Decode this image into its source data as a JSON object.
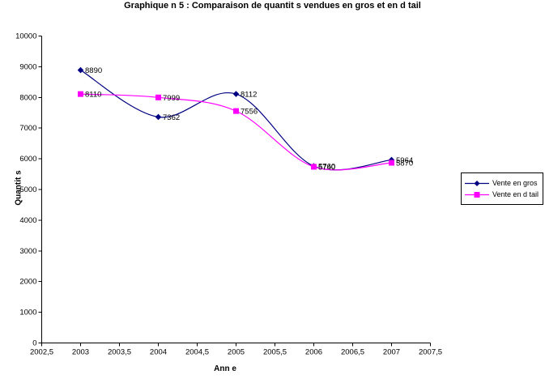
{
  "title": "Graphique n 5 : Comparaison de quantit s vendues en gros et en d tail",
  "chart_data": {
    "type": "line",
    "smoothed": true,
    "title": "Graphique n 5 : Comparaison de quantit s vendues en gros et en d tail",
    "xlabel": "Ann e",
    "ylabel": "Quantit s",
    "xlim": [
      2002.5,
      2007.5
    ],
    "ylim": [
      0,
      10000
    ],
    "grid": false,
    "legend_position": "right",
    "x": [
      2003,
      2004,
      2005,
      2006,
      2007
    ],
    "series": [
      {
        "name": "Vente en gros",
        "color": "#000080",
        "marker": "diamond",
        "values": [
          8890,
          7362,
          8112,
          5760,
          5964
        ],
        "point_labels": [
          "8890",
          "7362",
          "8112",
          "5760",
          "5964"
        ]
      },
      {
        "name": "Vente en d tail",
        "color": "#FF00FF",
        "marker": "square",
        "values": [
          8110,
          7999,
          7556,
          5740,
          5870
        ],
        "point_labels": [
          "8110",
          "7999",
          "7556",
          "5740",
          "5870"
        ]
      }
    ],
    "x_ticks": [
      {
        "v": 2002.5,
        "label": "2002,5"
      },
      {
        "v": 2003,
        "label": "2003"
      },
      {
        "v": 2003.5,
        "label": "2003,5"
      },
      {
        "v": 2004,
        "label": "2004"
      },
      {
        "v": 2004.5,
        "label": "2004,5"
      },
      {
        "v": 2005,
        "label": "2005"
      },
      {
        "v": 2005.5,
        "label": "2005,5"
      },
      {
        "v": 2006,
        "label": "2006"
      },
      {
        "v": 2006.5,
        "label": "2006,5"
      },
      {
        "v": 2007,
        "label": "2007"
      },
      {
        "v": 2007.5,
        "label": "2007,5"
      }
    ],
    "y_ticks": [
      {
        "v": 0,
        "label": "0"
      },
      {
        "v": 1000,
        "label": "1000"
      },
      {
        "v": 2000,
        "label": "2000"
      },
      {
        "v": 3000,
        "label": "3000"
      },
      {
        "v": 4000,
        "label": "4000"
      },
      {
        "v": 5000,
        "label": "5000"
      },
      {
        "v": 6000,
        "label": "6000"
      },
      {
        "v": 7000,
        "label": "7000"
      },
      {
        "v": 8000,
        "label": "8000"
      },
      {
        "v": 9000,
        "label": "9000"
      },
      {
        "v": 10000,
        "label": "10000"
      }
    ],
    "axis_color": "#000000",
    "label_color": "#000000"
  }
}
